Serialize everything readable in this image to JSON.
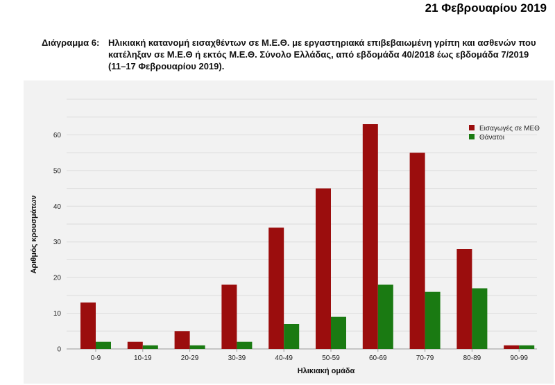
{
  "header": {
    "date": "21 Φεβρουαρίου 2019"
  },
  "caption": {
    "label": "Διάγραμμα 6:",
    "text": "Ηλικιακή κατανομή εισαχθέντων σε Μ.Ε.Θ. με εργαστηριακά επιβεβαιωμένη γρίπη και ασθενών που κατέληξαν σε Μ.Ε.Θ ή εκτός Μ.Ε.Θ. Σύνολο Ελλάδας, από εβδομάδα 40/2018 έως εβδομάδα 7/2019 (11–17 Φεβρουαρίου 2019)."
  },
  "colors": {
    "icu": "#9b0d0d",
    "deaths": "#1a7a12",
    "grid": "#dcdcdc",
    "panel": "#f2f2f2"
  },
  "chart_data": {
    "type": "bar",
    "categories": [
      "0-9",
      "10-19",
      "20-29",
      "30-39",
      "40-49",
      "50-59",
      "60-69",
      "70-79",
      "80-89",
      "90-99"
    ],
    "series": [
      {
        "name": "Εισαγωγές σε ΜΕΘ",
        "values": [
          13,
          2,
          5,
          18,
          34,
          45,
          63,
          55,
          28,
          1
        ]
      },
      {
        "name": "Θάνατοι",
        "values": [
          2,
          1,
          1,
          2,
          7,
          9,
          18,
          16,
          17,
          1
        ]
      }
    ],
    "xlabel": "Ηλικιακή ομάδα",
    "ylabel": "Αριθμός κρουσμάτων",
    "ylim": [
      0,
      70
    ],
    "yticks": [
      0,
      10,
      20,
      30,
      40,
      50,
      60
    ],
    "grid": true,
    "legend_position": "top-right"
  }
}
